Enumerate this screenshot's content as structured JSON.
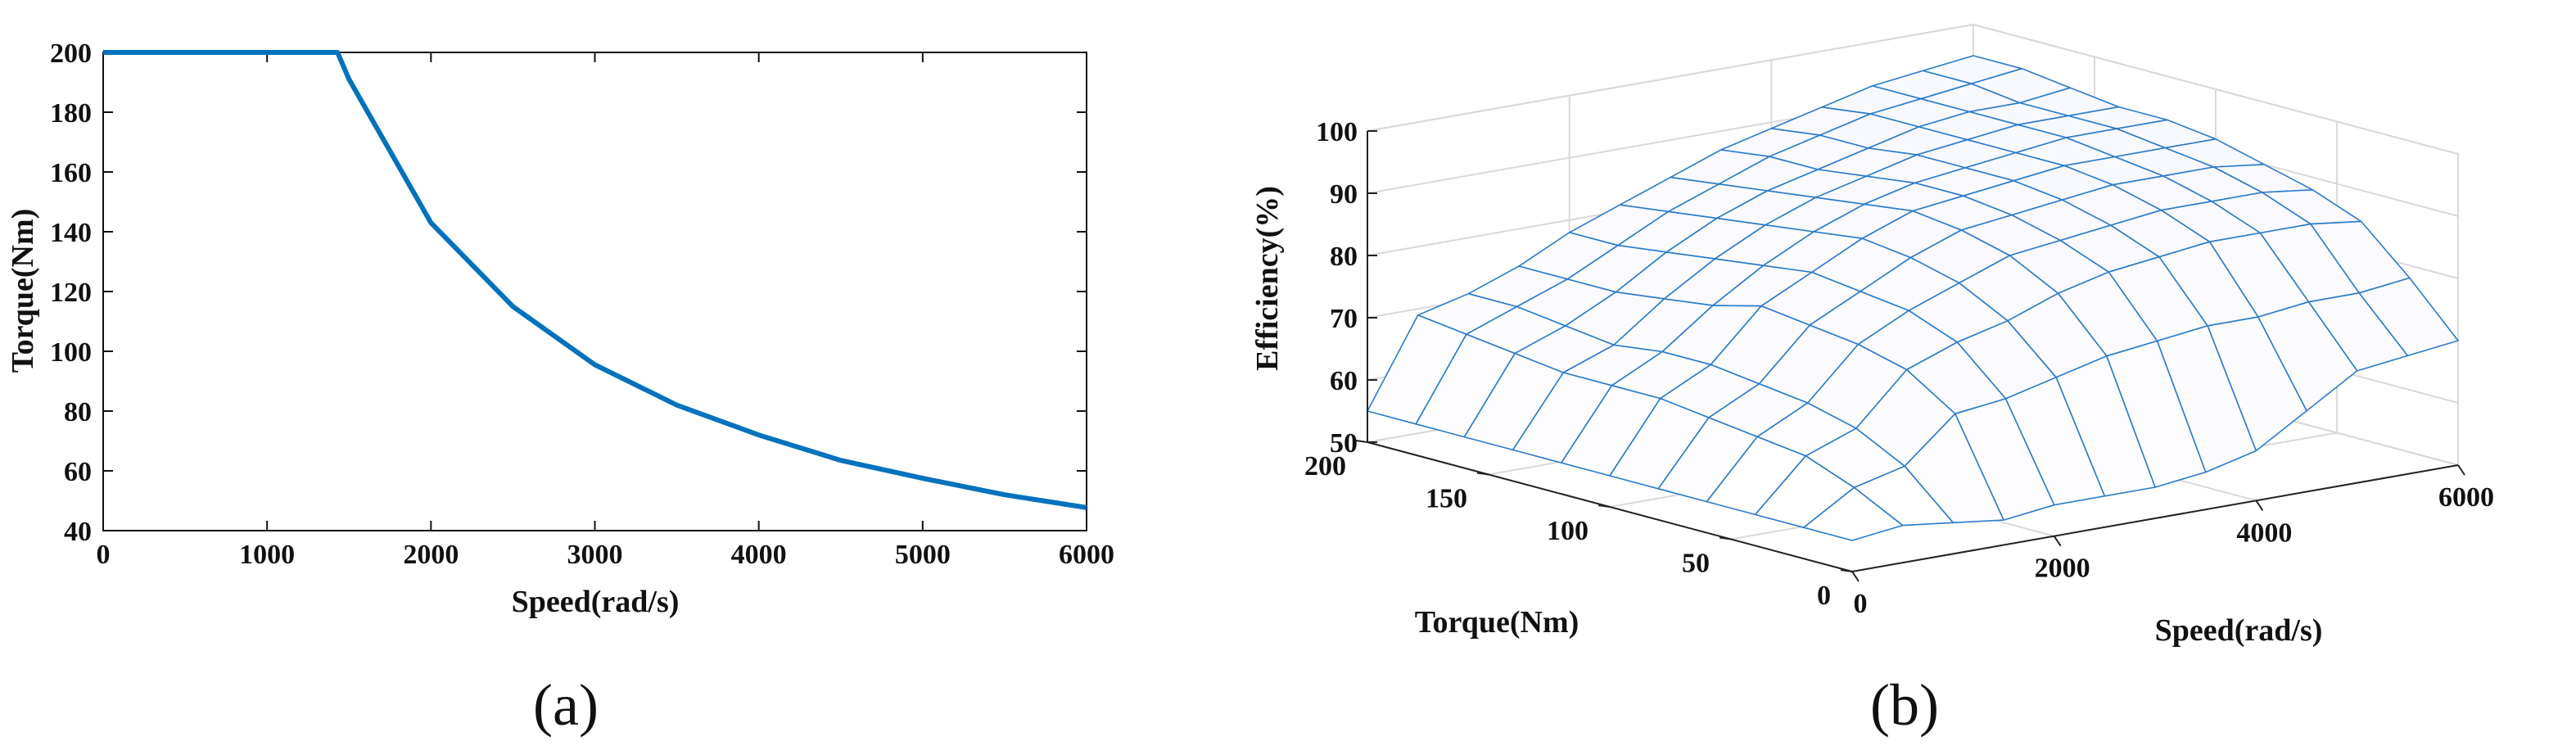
{
  "chart_data": [
    {
      "type": "line",
      "panel_label": "(a)",
      "xlabel": "Speed(rad/s)",
      "ylabel": "Torque(Nm)",
      "xlim": [
        0,
        6000
      ],
      "ylim": [
        40,
        200
      ],
      "xticks": [
        0,
        1000,
        2000,
        3000,
        4000,
        5000,
        6000
      ],
      "yticks": [
        40,
        60,
        80,
        100,
        120,
        140,
        160,
        180,
        200
      ],
      "series": [
        {
          "color": "#0072BD",
          "x": [
            0,
            1000,
            1430,
            1500,
            2000,
            2500,
            3000,
            3500,
            4000,
            4500,
            5000,
            5500,
            6000
          ],
          "y": [
            200,
            200,
            200,
            191,
            143,
            115,
            95.5,
            82,
            72,
            63.5,
            57.5,
            52,
            47.7
          ]
        }
      ],
      "grid": false
    },
    {
      "type": "surface",
      "panel_label": "(b)",
      "xlabel": "Speed(rad/s)",
      "ylabel": "Torque(Nm)",
      "zlabel": "Efficiency(%)",
      "xlim": [
        0,
        6000
      ],
      "ylim": [
        0,
        200
      ],
      "zlim": [
        50,
        100
      ],
      "xticks": [
        0,
        2000,
        4000,
        6000
      ],
      "yticks": [
        0,
        50,
        100,
        150,
        200
      ],
      "zticks": [
        50,
        60,
        70,
        80,
        90,
        100
      ],
      "mesh_color": "#2B7BC9",
      "grid": true,
      "speed_values": [
        0,
        500,
        1000,
        1500,
        2000,
        2500,
        3000,
        3500,
        4000,
        4500,
        5000,
        5500,
        6000
      ],
      "torque_values": [
        0,
        20,
        40,
        60,
        80,
        100,
        120,
        140,
        160,
        180,
        200
      ],
      "efficiency_values": [
        [
          55,
          55,
          55,
          55,
          55,
          55,
          55,
          55,
          55,
          55,
          55
        ],
        [
          56,
          60,
          63,
          64,
          65,
          66,
          66,
          66,
          67,
          68,
          69
        ],
        [
          55,
          62,
          66,
          68,
          69,
          70,
          70,
          69,
          70,
          71,
          71
        ],
        [
          54,
          69,
          74,
          76,
          77,
          78,
          76,
          75,
          74,
          74,
          74
        ],
        [
          55,
          70,
          77,
          80,
          81,
          82,
          81,
          80,
          79,
          78,
          78
        ],
        [
          55,
          72,
          79,
          83,
          85,
          86,
          85,
          84,
          83,
          82,
          81
        ],
        [
          55,
          74,
          82,
          86,
          88,
          89,
          88,
          87,
          86,
          85,
          84
        ],
        [
          56,
          75,
          84,
          87,
          89,
          90,
          90,
          89,
          88,
          88,
          87
        ],
        [
          58,
          76,
          85,
          88,
          90,
          91,
          91,
          91,
          90,
          90,
          89
        ],
        [
          63,
          76,
          86,
          89,
          91,
          92,
          92,
          92,
          92,
          92,
          91
        ],
        [
          68,
          77,
          86,
          89,
          91,
          92,
          93,
          93,
          93,
          93,
          93
        ],
        [
          69,
          77,
          86,
          89,
          91,
          92,
          93,
          93,
          93,
          94,
          94
        ],
        [
          70,
          78,
          85,
          88,
          90,
          92,
          93,
          93,
          94,
          95,
          95
        ]
      ]
    }
  ]
}
